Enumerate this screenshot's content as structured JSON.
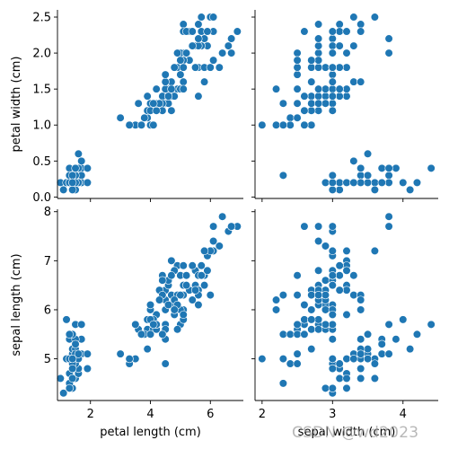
{
  "colors": {
    "marker": "#1f77b4",
    "marker_edge": "#ffffff",
    "axis": "#000000"
  },
  "watermark": "CSDN @wd2023",
  "chart_data": {
    "type": "scatter",
    "layout": "pairplot 2x2",
    "grid": false,
    "legend": "none",
    "variables": {
      "petal length (cm)": {
        "range": [
          0.9,
          7.1
        ],
        "ticks": [
          2,
          4,
          6
        ]
      },
      "sepal width (cm)": {
        "range": [
          1.9,
          4.5
        ],
        "ticks": [
          2,
          3,
          4
        ]
      },
      "petal width (cm)": {
        "range": [
          -0.02,
          2.6
        ],
        "ticks": [
          0.0,
          0.5,
          1.0,
          1.5,
          2.0,
          2.5
        ]
      },
      "sepal length (cm)": {
        "range": [
          4.15,
          8.05
        ],
        "ticks": [
          5,
          6,
          7,
          8
        ]
      }
    },
    "tick_format": {
      "petal width (cm)": 1
    },
    "rows": [
      "petal width (cm)",
      "sepal length (cm)"
    ],
    "cols": [
      "petal length (cm)",
      "sepal width (cm)"
    ],
    "x_labels": [
      "petal length (cm)",
      "sepal width (cm)"
    ],
    "y_labels": [
      "petal width (cm)",
      "sepal length (cm)"
    ],
    "records": [
      [
        5.1,
        3.5,
        1.4,
        0.2
      ],
      [
        4.9,
        3.0,
        1.4,
        0.2
      ],
      [
        4.7,
        3.2,
        1.3,
        0.2
      ],
      [
        4.6,
        3.1,
        1.5,
        0.2
      ],
      [
        5.0,
        3.6,
        1.4,
        0.2
      ],
      [
        5.4,
        3.9,
        1.7,
        0.4
      ],
      [
        4.6,
        3.4,
        1.4,
        0.3
      ],
      [
        5.0,
        3.4,
        1.5,
        0.2
      ],
      [
        4.4,
        2.9,
        1.4,
        0.2
      ],
      [
        4.9,
        3.1,
        1.5,
        0.1
      ],
      [
        5.4,
        3.7,
        1.5,
        0.2
      ],
      [
        4.8,
        3.4,
        1.6,
        0.2
      ],
      [
        4.8,
        3.0,
        1.4,
        0.1
      ],
      [
        4.3,
        3.0,
        1.1,
        0.1
      ],
      [
        5.8,
        4.0,
        1.2,
        0.2
      ],
      [
        5.7,
        4.4,
        1.5,
        0.4
      ],
      [
        5.4,
        3.9,
        1.3,
        0.4
      ],
      [
        5.1,
        3.5,
        1.4,
        0.3
      ],
      [
        5.7,
        3.8,
        1.7,
        0.3
      ],
      [
        5.1,
        3.8,
        1.5,
        0.3
      ],
      [
        5.4,
        3.4,
        1.7,
        0.2
      ],
      [
        5.1,
        3.7,
        1.5,
        0.4
      ],
      [
        4.6,
        3.6,
        1.0,
        0.2
      ],
      [
        5.1,
        3.3,
        1.7,
        0.5
      ],
      [
        4.8,
        3.4,
        1.9,
        0.2
      ],
      [
        5.0,
        3.0,
        1.6,
        0.2
      ],
      [
        5.0,
        3.4,
        1.6,
        0.4
      ],
      [
        5.2,
        3.5,
        1.5,
        0.2
      ],
      [
        5.2,
        3.4,
        1.4,
        0.2
      ],
      [
        4.7,
        3.2,
        1.6,
        0.2
      ],
      [
        4.8,
        3.1,
        1.6,
        0.2
      ],
      [
        5.4,
        3.4,
        1.5,
        0.4
      ],
      [
        5.2,
        4.1,
        1.5,
        0.1
      ],
      [
        5.5,
        4.2,
        1.4,
        0.2
      ],
      [
        4.9,
        3.1,
        1.5,
        0.2
      ],
      [
        5.0,
        3.2,
        1.2,
        0.2
      ],
      [
        5.5,
        3.5,
        1.3,
        0.2
      ],
      [
        4.9,
        3.6,
        1.4,
        0.1
      ],
      [
        4.4,
        3.0,
        1.3,
        0.2
      ],
      [
        5.1,
        3.4,
        1.5,
        0.2
      ],
      [
        5.0,
        3.5,
        1.3,
        0.3
      ],
      [
        4.5,
        2.3,
        1.3,
        0.3
      ],
      [
        4.4,
        3.2,
        1.3,
        0.2
      ],
      [
        5.0,
        3.5,
        1.6,
        0.6
      ],
      [
        5.1,
        3.8,
        1.9,
        0.4
      ],
      [
        4.8,
        3.0,
        1.4,
        0.3
      ],
      [
        5.1,
        3.8,
        1.6,
        0.2
      ],
      [
        4.6,
        3.2,
        1.4,
        0.2
      ],
      [
        5.3,
        3.7,
        1.5,
        0.2
      ],
      [
        5.0,
        3.3,
        1.4,
        0.2
      ],
      [
        7.0,
        3.2,
        4.7,
        1.4
      ],
      [
        6.4,
        3.2,
        4.5,
        1.5
      ],
      [
        6.9,
        3.1,
        4.9,
        1.5
      ],
      [
        5.5,
        2.3,
        4.0,
        1.3
      ],
      [
        6.5,
        2.8,
        4.6,
        1.5
      ],
      [
        5.7,
        2.8,
        4.5,
        1.3
      ],
      [
        6.3,
        3.3,
        4.7,
        1.6
      ],
      [
        4.9,
        2.4,
        3.3,
        1.0
      ],
      [
        6.6,
        2.9,
        4.6,
        1.3
      ],
      [
        5.2,
        2.7,
        3.9,
        1.4
      ],
      [
        5.0,
        2.0,
        3.5,
        1.0
      ],
      [
        5.9,
        3.0,
        4.2,
        1.5
      ],
      [
        6.0,
        2.2,
        4.0,
        1.0
      ],
      [
        6.1,
        2.9,
        4.7,
        1.4
      ],
      [
        5.6,
        2.9,
        3.6,
        1.3
      ],
      [
        6.7,
        3.1,
        4.4,
        1.4
      ],
      [
        5.6,
        3.0,
        4.5,
        1.5
      ],
      [
        5.8,
        2.7,
        4.1,
        1.0
      ],
      [
        6.2,
        2.2,
        4.5,
        1.5
      ],
      [
        5.6,
        2.5,
        3.9,
        1.1
      ],
      [
        5.9,
        3.2,
        4.8,
        1.8
      ],
      [
        6.1,
        2.8,
        4.0,
        1.3
      ],
      [
        6.3,
        2.5,
        4.9,
        1.5
      ],
      [
        6.1,
        2.8,
        4.7,
        1.2
      ],
      [
        6.4,
        2.9,
        4.3,
        1.3
      ],
      [
        6.6,
        3.0,
        4.4,
        1.4
      ],
      [
        6.8,
        2.8,
        4.8,
        1.4
      ],
      [
        6.7,
        3.0,
        5.0,
        1.7
      ],
      [
        6.0,
        2.9,
        4.5,
        1.5
      ],
      [
        5.7,
        2.6,
        3.5,
        1.0
      ],
      [
        5.5,
        2.4,
        3.8,
        1.1
      ],
      [
        5.5,
        2.4,
        3.7,
        1.0
      ],
      [
        5.8,
        2.7,
        3.9,
        1.2
      ],
      [
        6.0,
        2.7,
        5.1,
        1.6
      ],
      [
        5.4,
        3.0,
        4.5,
        1.5
      ],
      [
        6.0,
        3.4,
        4.5,
        1.6
      ],
      [
        6.7,
        3.1,
        4.7,
        1.5
      ],
      [
        6.3,
        2.3,
        4.4,
        1.3
      ],
      [
        5.6,
        3.0,
        4.1,
        1.3
      ],
      [
        5.5,
        2.5,
        4.0,
        1.3
      ],
      [
        5.5,
        2.6,
        4.4,
        1.2
      ],
      [
        6.1,
        3.0,
        4.6,
        1.4
      ],
      [
        5.8,
        2.6,
        4.0,
        1.2
      ],
      [
        5.0,
        2.3,
        3.3,
        1.0
      ],
      [
        5.6,
        2.7,
        4.2,
        1.3
      ],
      [
        5.7,
        3.0,
        4.2,
        1.2
      ],
      [
        5.7,
        2.9,
        4.2,
        1.3
      ],
      [
        6.2,
        2.9,
        4.3,
        1.3
      ],
      [
        5.1,
        2.5,
        3.0,
        1.1
      ],
      [
        5.7,
        2.8,
        4.1,
        1.3
      ],
      [
        6.3,
        3.3,
        6.0,
        2.5
      ],
      [
        5.8,
        2.7,
        5.1,
        1.9
      ],
      [
        7.1,
        3.0,
        5.9,
        2.1
      ],
      [
        6.3,
        2.9,
        5.6,
        1.8
      ],
      [
        6.5,
        3.0,
        5.8,
        2.2
      ],
      [
        7.6,
        3.0,
        6.6,
        2.1
      ],
      [
        4.9,
        2.5,
        4.5,
        1.7
      ],
      [
        7.3,
        2.9,
        6.3,
        1.8
      ],
      [
        6.7,
        2.5,
        5.8,
        1.8
      ],
      [
        7.2,
        3.6,
        6.1,
        2.5
      ],
      [
        6.5,
        3.2,
        5.1,
        2.0
      ],
      [
        6.4,
        2.7,
        5.3,
        1.9
      ],
      [
        6.8,
        3.0,
        5.5,
        2.1
      ],
      [
        5.7,
        2.5,
        5.0,
        2.0
      ],
      [
        5.8,
        2.8,
        5.1,
        2.4
      ],
      [
        6.4,
        3.2,
        5.3,
        2.3
      ],
      [
        6.5,
        3.0,
        5.5,
        1.8
      ],
      [
        7.7,
        3.8,
        6.7,
        2.2
      ],
      [
        7.7,
        2.6,
        6.9,
        2.3
      ],
      [
        6.0,
        2.2,
        5.0,
        1.5
      ],
      [
        6.9,
        3.2,
        5.7,
        2.3
      ],
      [
        5.6,
        2.8,
        4.9,
        2.0
      ],
      [
        7.7,
        2.8,
        6.7,
        2.0
      ],
      [
        6.3,
        2.7,
        4.9,
        1.8
      ],
      [
        6.7,
        3.3,
        5.7,
        2.1
      ],
      [
        7.2,
        3.2,
        6.0,
        1.8
      ],
      [
        6.2,
        2.8,
        4.8,
        1.8
      ],
      [
        6.1,
        3.0,
        4.9,
        1.8
      ],
      [
        6.4,
        2.8,
        5.6,
        2.1
      ],
      [
        7.2,
        3.0,
        5.8,
        1.6
      ],
      [
        7.4,
        2.8,
        6.1,
        1.9
      ],
      [
        7.9,
        3.8,
        6.4,
        2.0
      ],
      [
        6.4,
        2.8,
        5.6,
        2.2
      ],
      [
        6.3,
        2.8,
        5.1,
        1.5
      ],
      [
        6.1,
        2.6,
        5.6,
        1.4
      ],
      [
        7.7,
        3.0,
        6.1,
        2.3
      ],
      [
        6.3,
        3.4,
        5.6,
        2.4
      ],
      [
        6.4,
        3.1,
        5.5,
        1.8
      ],
      [
        6.0,
        3.0,
        4.8,
        1.8
      ],
      [
        6.9,
        3.1,
        5.4,
        2.1
      ],
      [
        6.7,
        3.1,
        5.6,
        2.4
      ],
      [
        6.9,
        3.1,
        5.1,
        2.3
      ],
      [
        5.8,
        2.7,
        5.1,
        1.9
      ],
      [
        6.8,
        3.2,
        5.9,
        2.3
      ],
      [
        6.7,
        3.3,
        5.7,
        2.5
      ],
      [
        6.7,
        3.0,
        5.2,
        2.3
      ],
      [
        6.3,
        2.5,
        5.0,
        1.9
      ],
      [
        6.5,
        3.0,
        5.2,
        2.0
      ],
      [
        6.2,
        3.4,
        5.4,
        2.3
      ],
      [
        5.9,
        3.0,
        5.1,
        1.8
      ]
    ],
    "record_fields": [
      "sepal length (cm)",
      "sepal width (cm)",
      "petal length (cm)",
      "petal width (cm)"
    ]
  }
}
